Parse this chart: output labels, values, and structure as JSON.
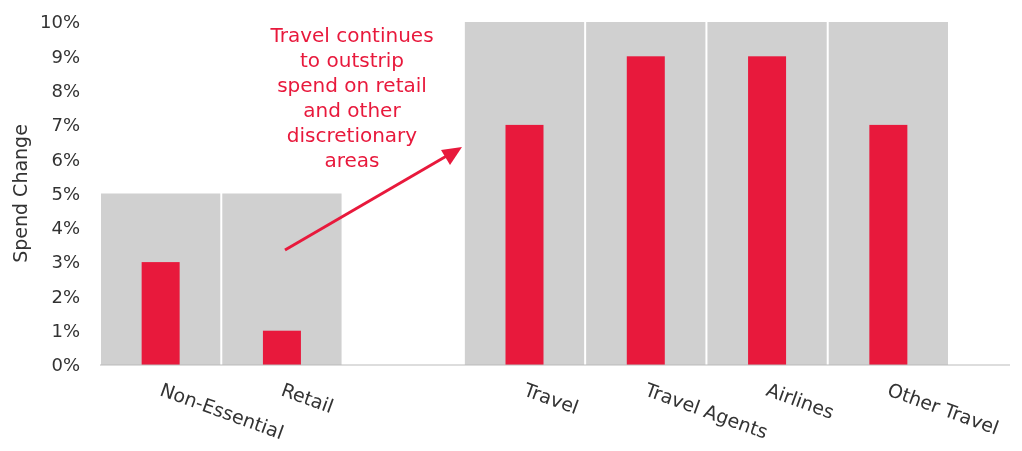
{
  "chart_data": {
    "type": "bar",
    "ylabel": "Spend Change",
    "categories": [
      "Non-Essential",
      "Retail",
      null,
      "Travel",
      "Travel Agents",
      "Airlines",
      "Other Travel"
    ],
    "series": [
      {
        "color": "#d0d0d0",
        "values": [
          5,
          5,
          null,
          10,
          10,
          10,
          10
        ]
      },
      {
        "color": "#e8193c",
        "values": [
          3,
          1,
          null,
          7,
          9,
          9,
          7
        ]
      }
    ],
    "ylim": [
      0,
      10
    ],
    "yticks": [
      {
        "value": 0,
        "label": "0%"
      },
      {
        "value": 1,
        "label": "1%"
      },
      {
        "value": 2,
        "label": "2%"
      },
      {
        "value": 3,
        "label": "3%"
      },
      {
        "value": 4,
        "label": "4%"
      },
      {
        "value": 5,
        "label": "5%"
      },
      {
        "value": 6,
        "label": "6%"
      },
      {
        "value": 7,
        "label": "7%"
      },
      {
        "value": 8,
        "label": "8%"
      },
      {
        "value": 9,
        "label": "9%"
      },
      {
        "value": 10,
        "label": "10%"
      }
    ],
    "grid": false,
    "annotations": [
      "Travel continues to outstrip spend on retail and other discretionary areas"
    ]
  }
}
